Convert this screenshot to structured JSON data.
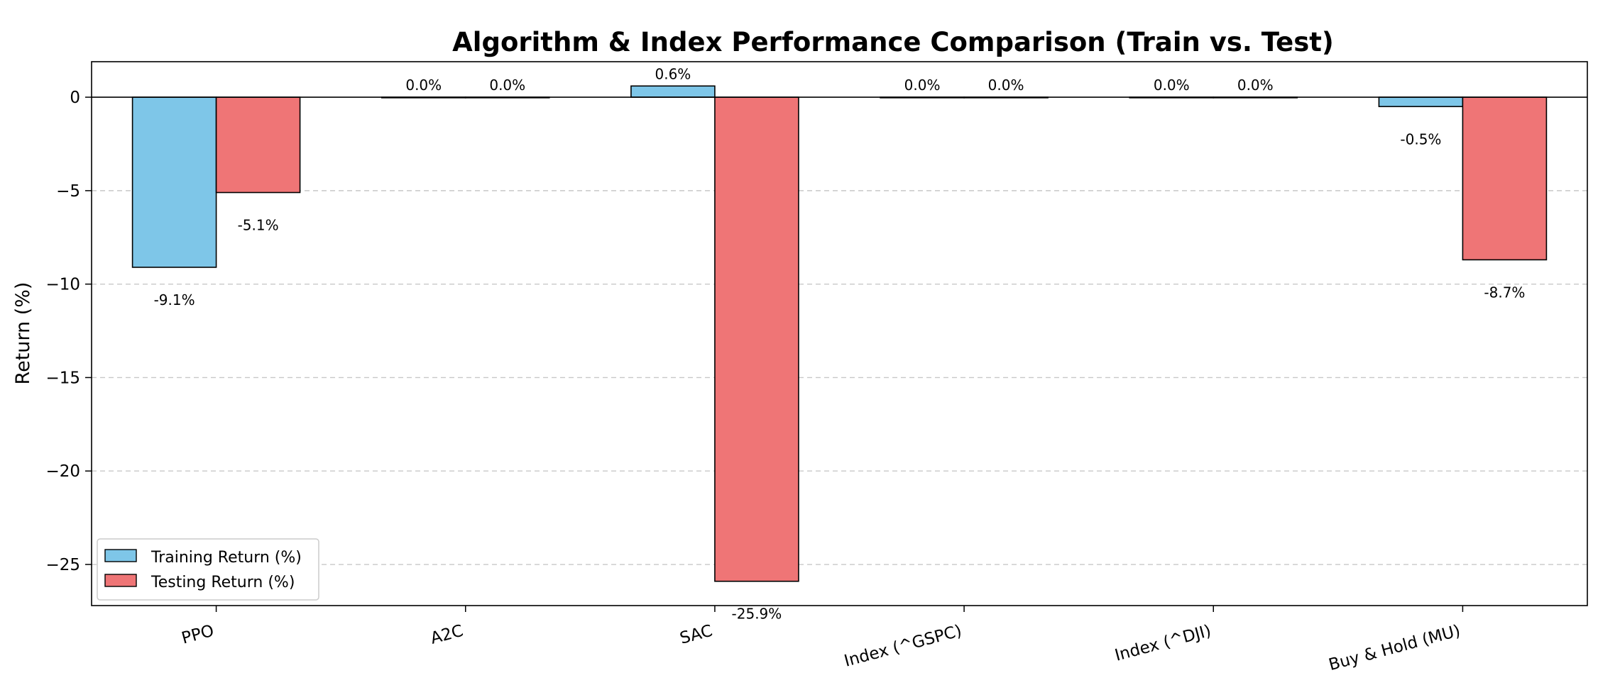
{
  "chart_data": {
    "type": "bar",
    "title": "Algorithm & Index Performance Comparison (Train vs. Test)",
    "xlabel": "",
    "ylabel": "Return (%)",
    "ylim": [
      -27.2,
      1.9
    ],
    "yticks": [
      0,
      -5,
      -10,
      -15,
      -20,
      -25
    ],
    "ytick_labels": [
      "0",
      "−5",
      "−10",
      "−15",
      "−20",
      "−25"
    ],
    "categories": [
      "PPO",
      "A2C",
      "SAC",
      "Index (^GSPC)",
      "Index (^DJI)",
      "Buy & Hold (MU)"
    ],
    "series": [
      {
        "name": "Training Return (%)",
        "color": "#7ec6e8",
        "values": [
          -9.1,
          0.0,
          0.6,
          0.0,
          0.0,
          -0.5
        ],
        "labels": [
          "-9.1%",
          "0.0%",
          "0.6%",
          "0.0%",
          "0.0%",
          "-0.5%"
        ]
      },
      {
        "name": "Testing Return (%)",
        "color": "#ef7576",
        "values": [
          -5.1,
          0.0,
          -25.9,
          0.0,
          0.0,
          -8.7
        ],
        "labels": [
          "-5.1%",
          "0.0%",
          "-25.9%",
          "0.0%",
          "0.0%",
          "-8.7%"
        ]
      }
    ],
    "grid": "y-dashed",
    "legend_position": "lower-left",
    "xtick_rotation": 15
  }
}
